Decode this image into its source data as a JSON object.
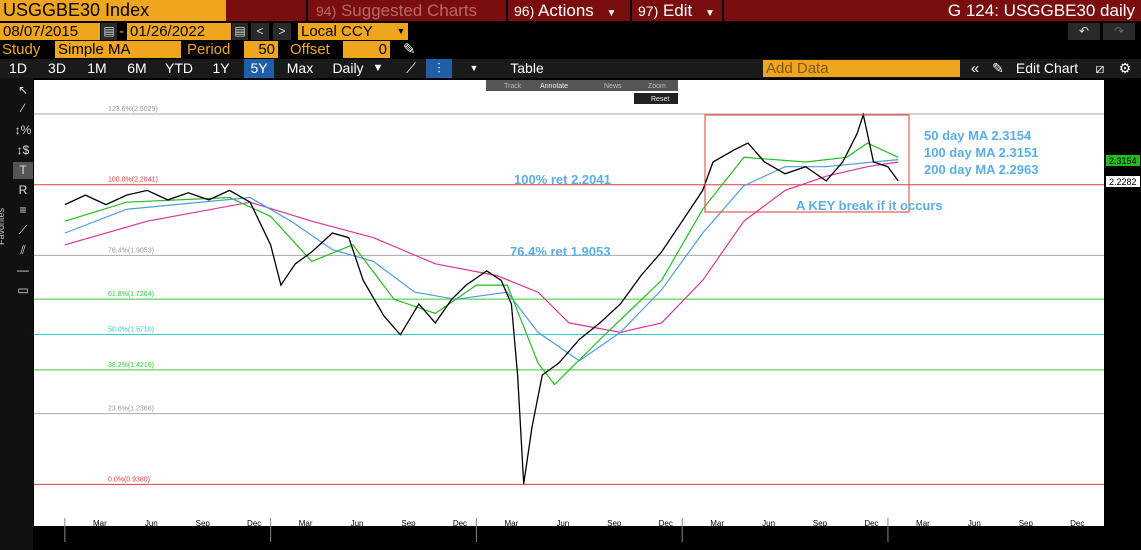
{
  "topbar": {
    "ticker": "USGGBE30 Index",
    "suggested": {
      "num": "94)",
      "label": "Suggested Charts"
    },
    "actions": {
      "num": "96)",
      "label": "Actions"
    },
    "edit": {
      "num": "97)",
      "label": "Edit"
    },
    "graph_title": "G 124: USGGBE30 daily"
  },
  "dates": {
    "start": "08/07/2015",
    "end": "01/26/2022",
    "currency": "Local CCY"
  },
  "study": {
    "label": "Study",
    "value": "Simple MA",
    "period_label": "Period",
    "period": "50",
    "offset_label": "Offset",
    "offset": "0"
  },
  "timebar": {
    "periods": [
      "1D",
      "3D",
      "1M",
      "6M",
      "YTD",
      "1Y",
      "5Y",
      "Max"
    ],
    "active_period": "5Y",
    "frequency": "Daily",
    "table": "Table",
    "add_data_placeholder": "Add Data",
    "edit_chart": "Edit Chart"
  },
  "chart_toolbar": {
    "track": "Track",
    "annotate": "Annotate",
    "news": "News",
    "zoom": "Zoom",
    "reset": "Reset"
  },
  "sidebar": {
    "favorites": "Favorites"
  },
  "colors": {
    "price": "#000000",
    "ma50": "#22bb22",
    "ma100": "#4f9be0",
    "ma200": "#dd3399",
    "annotation": "#5aaee6"
  },
  "chart_data": {
    "type": "line",
    "y_axis": {
      "ylim": [
        0.8,
        2.6
      ],
      "ticks": [
        "2.6000",
        "2.4000",
        "2.2000",
        "2.0000",
        "1.8000",
        "1.6000",
        "1.4000",
        "1.2000",
        "1.0000",
        "0.8000"
      ],
      "side": "right"
    },
    "x_axis": {
      "months": [
        "Mar",
        "Jun",
        "Sep",
        "Dec",
        "Mar",
        "Jun",
        "Sep",
        "Dec",
        "Mar",
        "Jun",
        "Sep",
        "Dec",
        "Mar",
        "Jun",
        "Sep",
        "Dec",
        "Mar",
        "Jun",
        "Sep",
        "Dec"
      ],
      "years": [
        "2018",
        "2019",
        "2020",
        "2021",
        "2022"
      ]
    },
    "last_price": "2.2282",
    "last_ma": "2.3154",
    "fib_levels": [
      {
        "label": "123.6%(2.5029)",
        "value": 2.5029,
        "color": "#aaaaaa"
      },
      {
        "label": "100.0%(2.2041)",
        "value": 2.2041,
        "color": "#e33a3a"
      },
      {
        "label": "76.4%(1.9053)",
        "value": 1.9053,
        "color": "#aaaaaa"
      },
      {
        "label": "61.8%(1.7204)",
        "value": 1.7204,
        "color": "#33cc33"
      },
      {
        "label": "50.0%(1.5710)",
        "value": 1.571,
        "color": "#33cccc"
      },
      {
        "label": "38.2%(1.4216)",
        "value": 1.4216,
        "color": "#33cc33"
      },
      {
        "label": "23.6%(1.2368)",
        "value": 1.2368,
        "color": "#aaaaaa"
      },
      {
        "label": "0.0%(0.9380)",
        "value": 0.938,
        "color": "#e33a3a"
      }
    ],
    "price_points": [
      [
        2018.0,
        2.12
      ],
      [
        2018.1,
        2.16
      ],
      [
        2018.2,
        2.12
      ],
      [
        2018.3,
        2.16
      ],
      [
        2018.4,
        2.18
      ],
      [
        2018.5,
        2.14
      ],
      [
        2018.6,
        2.17
      ],
      [
        2018.7,
        2.14
      ],
      [
        2018.8,
        2.18
      ],
      [
        2018.9,
        2.13
      ],
      [
        2019.0,
        1.95
      ],
      [
        2019.05,
        1.78
      ],
      [
        2019.12,
        1.87
      ],
      [
        2019.2,
        1.92
      ],
      [
        2019.3,
        2.0
      ],
      [
        2019.38,
        1.98
      ],
      [
        2019.45,
        1.8
      ],
      [
        2019.55,
        1.65
      ],
      [
        2019.63,
        1.57
      ],
      [
        2019.72,
        1.7
      ],
      [
        2019.8,
        1.62
      ],
      [
        2019.88,
        1.72
      ],
      [
        2019.95,
        1.78
      ],
      [
        2020.05,
        1.84
      ],
      [
        2020.12,
        1.8
      ],
      [
        2020.17,
        1.7
      ],
      [
        2020.2,
        1.4
      ],
      [
        2020.23,
        0.94
      ],
      [
        2020.27,
        1.18
      ],
      [
        2020.32,
        1.4
      ],
      [
        2020.4,
        1.45
      ],
      [
        2020.5,
        1.55
      ],
      [
        2020.6,
        1.62
      ],
      [
        2020.7,
        1.7
      ],
      [
        2020.8,
        1.82
      ],
      [
        2020.9,
        1.92
      ],
      [
        2021.0,
        2.05
      ],
      [
        2021.1,
        2.18
      ],
      [
        2021.15,
        2.3
      ],
      [
        2021.25,
        2.35
      ],
      [
        2021.32,
        2.38
      ],
      [
        2021.4,
        2.3
      ],
      [
        2021.5,
        2.25
      ],
      [
        2021.6,
        2.28
      ],
      [
        2021.7,
        2.22
      ],
      [
        2021.78,
        2.3
      ],
      [
        2021.85,
        2.42
      ],
      [
        2021.88,
        2.5
      ],
      [
        2021.93,
        2.3
      ],
      [
        2022.0,
        2.28
      ],
      [
        2022.05,
        2.22
      ]
    ],
    "ma50_points": [
      [
        2018.0,
        2.05
      ],
      [
        2018.3,
        2.13
      ],
      [
        2018.8,
        2.15
      ],
      [
        2019.0,
        2.07
      ],
      [
        2019.2,
        1.88
      ],
      [
        2019.4,
        1.95
      ],
      [
        2019.6,
        1.72
      ],
      [
        2019.8,
        1.66
      ],
      [
        2020.0,
        1.78
      ],
      [
        2020.15,
        1.78
      ],
      [
        2020.3,
        1.45
      ],
      [
        2020.38,
        1.36
      ],
      [
        2020.6,
        1.55
      ],
      [
        2020.9,
        1.8
      ],
      [
        2021.1,
        2.1
      ],
      [
        2021.3,
        2.32
      ],
      [
        2021.6,
        2.3
      ],
      [
        2021.8,
        2.32
      ],
      [
        2021.9,
        2.38
      ],
      [
        2022.05,
        2.32
      ]
    ],
    "ma100_points": [
      [
        2018.0,
        2.0
      ],
      [
        2018.3,
        2.1
      ],
      [
        2018.9,
        2.15
      ],
      [
        2019.1,
        2.05
      ],
      [
        2019.3,
        1.93
      ],
      [
        2019.5,
        1.88
      ],
      [
        2019.7,
        1.75
      ],
      [
        2019.9,
        1.72
      ],
      [
        2020.15,
        1.75
      ],
      [
        2020.3,
        1.58
      ],
      [
        2020.5,
        1.46
      ],
      [
        2020.7,
        1.58
      ],
      [
        2020.9,
        1.76
      ],
      [
        2021.1,
        2.0
      ],
      [
        2021.3,
        2.2
      ],
      [
        2021.5,
        2.28
      ],
      [
        2021.7,
        2.28
      ],
      [
        2022.05,
        2.31
      ]
    ],
    "ma200_points": [
      [
        2018.0,
        1.95
      ],
      [
        2018.4,
        2.05
      ],
      [
        2018.9,
        2.13
      ],
      [
        2019.2,
        2.05
      ],
      [
        2019.5,
        1.98
      ],
      [
        2019.8,
        1.87
      ],
      [
        2020.1,
        1.82
      ],
      [
        2020.3,
        1.75
      ],
      [
        2020.45,
        1.62
      ],
      [
        2020.7,
        1.58
      ],
      [
        2020.9,
        1.62
      ],
      [
        2021.1,
        1.8
      ],
      [
        2021.3,
        2.05
      ],
      [
        2021.5,
        2.18
      ],
      [
        2021.7,
        2.24
      ],
      [
        2021.9,
        2.28
      ],
      [
        2022.05,
        2.3
      ]
    ],
    "annotations": [
      {
        "text": "100% ret 2.2041"
      },
      {
        "text": "76.4% ret 1.9053"
      },
      {
        "text": "50 day MA 2.3154"
      },
      {
        "text": "100 day MA 2.3151"
      },
      {
        "text": "200 day MA 2.2963"
      },
      {
        "text": "A KEY break if it occurs"
      }
    ]
  }
}
